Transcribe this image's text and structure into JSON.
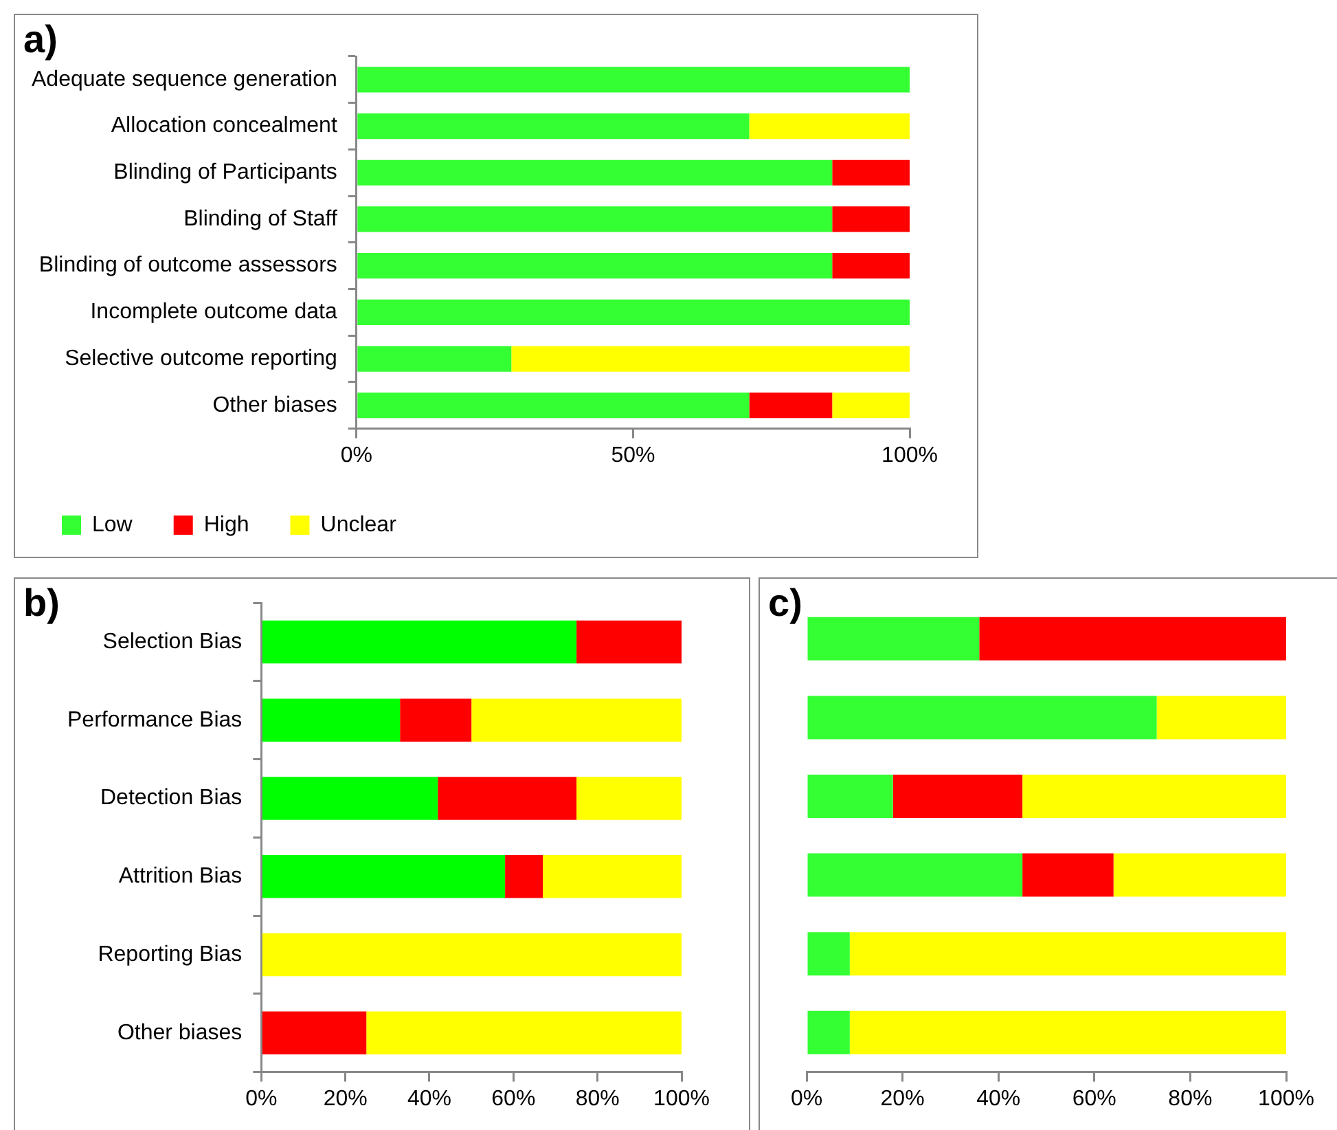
{
  "chart_data": [
    {
      "type": "bar",
      "title": "a)",
      "orientation": "horizontal",
      "stacked": true,
      "legend": "bottom left",
      "categories": [
        "Adequate sequence generation",
        "Allocation concealment",
        "Blinding of Participants",
        "Blinding of Staff",
        "Blinding of outcome assessors",
        "Incomplete outcome data",
        "Selective outcome reporting",
        "Other biases"
      ],
      "series": [
        {
          "name": "Low",
          "color": "#33ff33",
          "values": [
            100,
            71,
            86,
            86,
            86,
            100,
            28,
            71
          ]
        },
        {
          "name": "High",
          "color": "#ff0000",
          "values": [
            0,
            0,
            14,
            14,
            14,
            0,
            0,
            15
          ]
        },
        {
          "name": "Unclear",
          "color": "#ffff00",
          "values": [
            0,
            29,
            0,
            0,
            0,
            0,
            72,
            14
          ]
        }
      ],
      "xlim": [
        0,
        100
      ],
      "xticks": [
        {
          "value": 0,
          "label": "0%"
        },
        {
          "value": 50,
          "label": "50%"
        },
        {
          "value": 100,
          "label": "100%"
        }
      ]
    },
    {
      "type": "bar",
      "title": "b)",
      "orientation": "horizontal",
      "stacked": true,
      "categories": [
        "Selection Bias",
        "Performance Bias",
        "Detection Bias",
        "Attrition Bias",
        "Reporting Bias",
        "Other biases"
      ],
      "series": [
        {
          "color": "#00ff00",
          "values": [
            75,
            33,
            42,
            58,
            0,
            0
          ]
        },
        {
          "color": "#ff0000",
          "values": [
            25,
            17,
            33,
            9,
            0,
            25
          ]
        },
        {
          "color": "#ffff00",
          "values": [
            0,
            50,
            25,
            33,
            100,
            75
          ]
        }
      ],
      "xlim": [
        0,
        100
      ],
      "xticks": [
        {
          "value": 0,
          "label": "0%"
        },
        {
          "value": 20,
          "label": "20%"
        },
        {
          "value": 40,
          "label": "40%"
        },
        {
          "value": 60,
          "label": "60%"
        },
        {
          "value": 80,
          "label": "80%"
        },
        {
          "value": 100,
          "label": "100%"
        }
      ]
    },
    {
      "type": "bar",
      "title": "c)",
      "orientation": "horizontal",
      "stacked": true,
      "categories": [
        null,
        null,
        null,
        null,
        null,
        null
      ],
      "series": [
        {
          "color": "#33ff33",
          "values": [
            36,
            73,
            18,
            45,
            9,
            9
          ]
        },
        {
          "color": "#ff0000",
          "values": [
            64,
            0,
            27,
            19,
            0,
            0
          ]
        },
        {
          "color": "#ffff00",
          "values": [
            0,
            27,
            55,
            36,
            91,
            91
          ]
        }
      ],
      "xlim": [
        0,
        100
      ],
      "xticks": [
        {
          "value": 0,
          "label": "0%"
        },
        {
          "value": 20,
          "label": "20%"
        },
        {
          "value": 40,
          "label": "40%"
        },
        {
          "value": 60,
          "label": "60%"
        },
        {
          "value": 80,
          "label": "80%"
        },
        {
          "value": 100,
          "label": "100%"
        }
      ]
    }
  ]
}
